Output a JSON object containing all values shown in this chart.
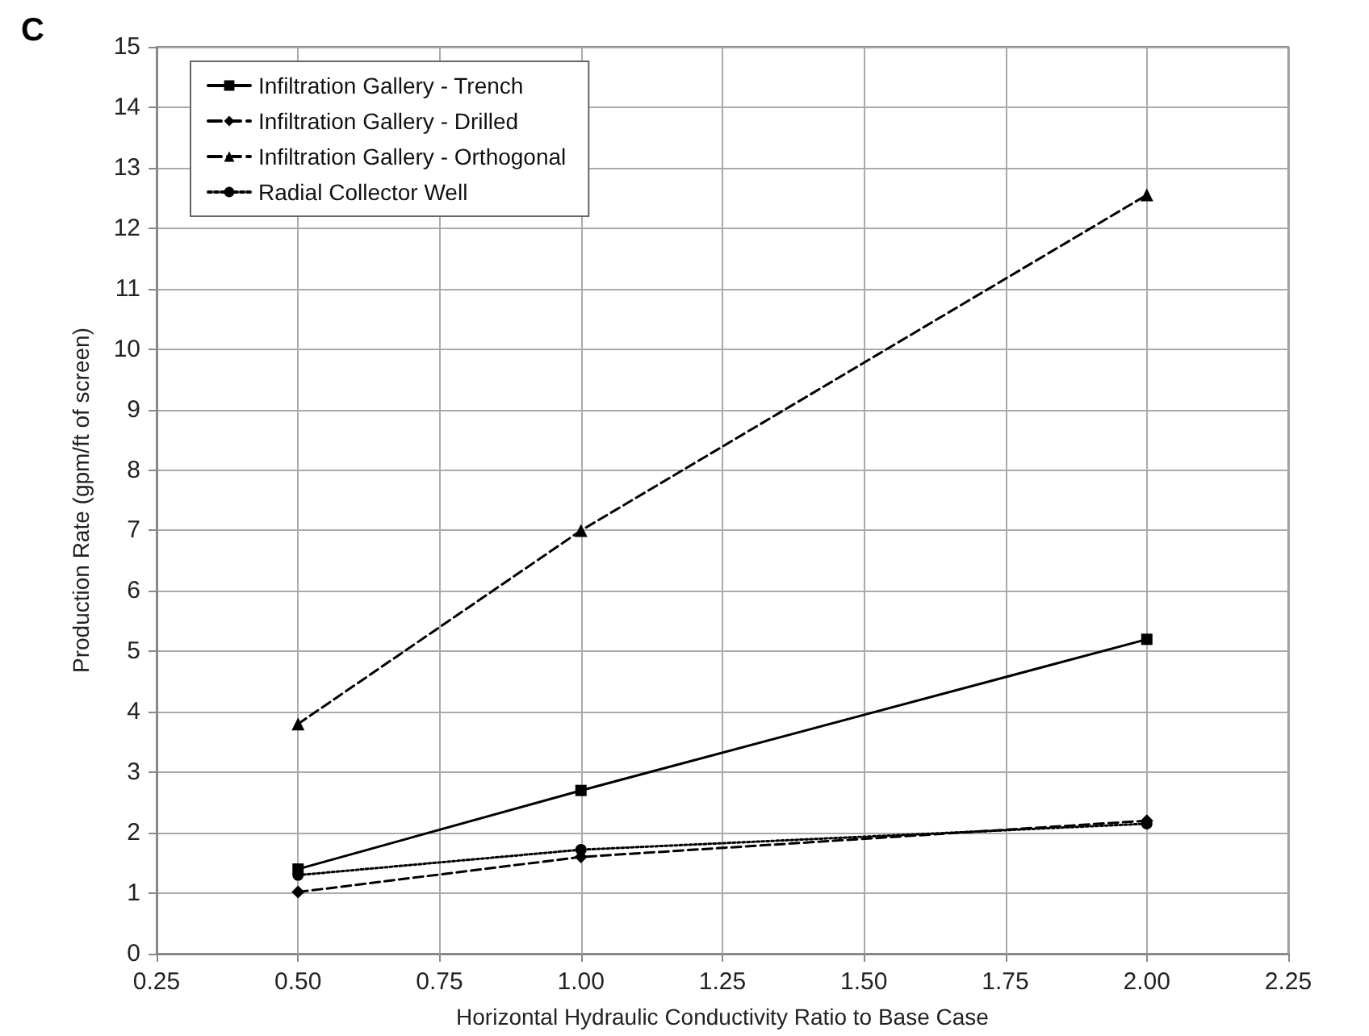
{
  "chart_data": {
    "type": "line",
    "title": "C",
    "xlabel": "Horizontal Hydraulic Conductivity Ratio to Base Case",
    "ylabel": "Production Rate (gpm/ft of screen)",
    "x": [
      0.5,
      1.0,
      2.0
    ],
    "series": [
      {
        "name": "Infiltration Gallery - Trench",
        "color": "#000000",
        "marker": "square",
        "line_style": "solid",
        "values": [
          1.4,
          2.7,
          5.2
        ]
      },
      {
        "name": "Infiltration Gallery - Drilled",
        "color": "#000000",
        "marker": "diamond",
        "line_style": "dashed",
        "values": [
          1.02,
          1.6,
          2.2
        ]
      },
      {
        "name": "Infiltration Gallery - Orthogonal",
        "color": "#000000",
        "marker": "triangle",
        "line_style": "dashed",
        "values": [
          3.8,
          7.0,
          12.55
        ]
      },
      {
        "name": "Radial Collector Well",
        "color": "#000000",
        "marker": "circle",
        "line_style": "dotted",
        "values": [
          1.3,
          1.72,
          2.15
        ]
      }
    ],
    "xlim": [
      0.25,
      2.25
    ],
    "xticks": [
      {
        "value": 0.25,
        "label": "0.25"
      },
      {
        "value": 0.5,
        "label": "0.50"
      },
      {
        "value": 0.75,
        "label": "0.75"
      },
      {
        "value": 1.0,
        "label": "1.00"
      },
      {
        "value": 1.25,
        "label": "1.25"
      },
      {
        "value": 1.5,
        "label": "1.50"
      },
      {
        "value": 1.75,
        "label": "1.75"
      },
      {
        "value": 2.0,
        "label": "2.00"
      },
      {
        "value": 2.25,
        "label": "2.25"
      }
    ],
    "ylim": [
      0,
      15
    ],
    "yticks": [
      0,
      1,
      2,
      3,
      4,
      5,
      6,
      7,
      8,
      9,
      10,
      11,
      12,
      13,
      14,
      15
    ],
    "grid": true,
    "legend": "top left"
  }
}
